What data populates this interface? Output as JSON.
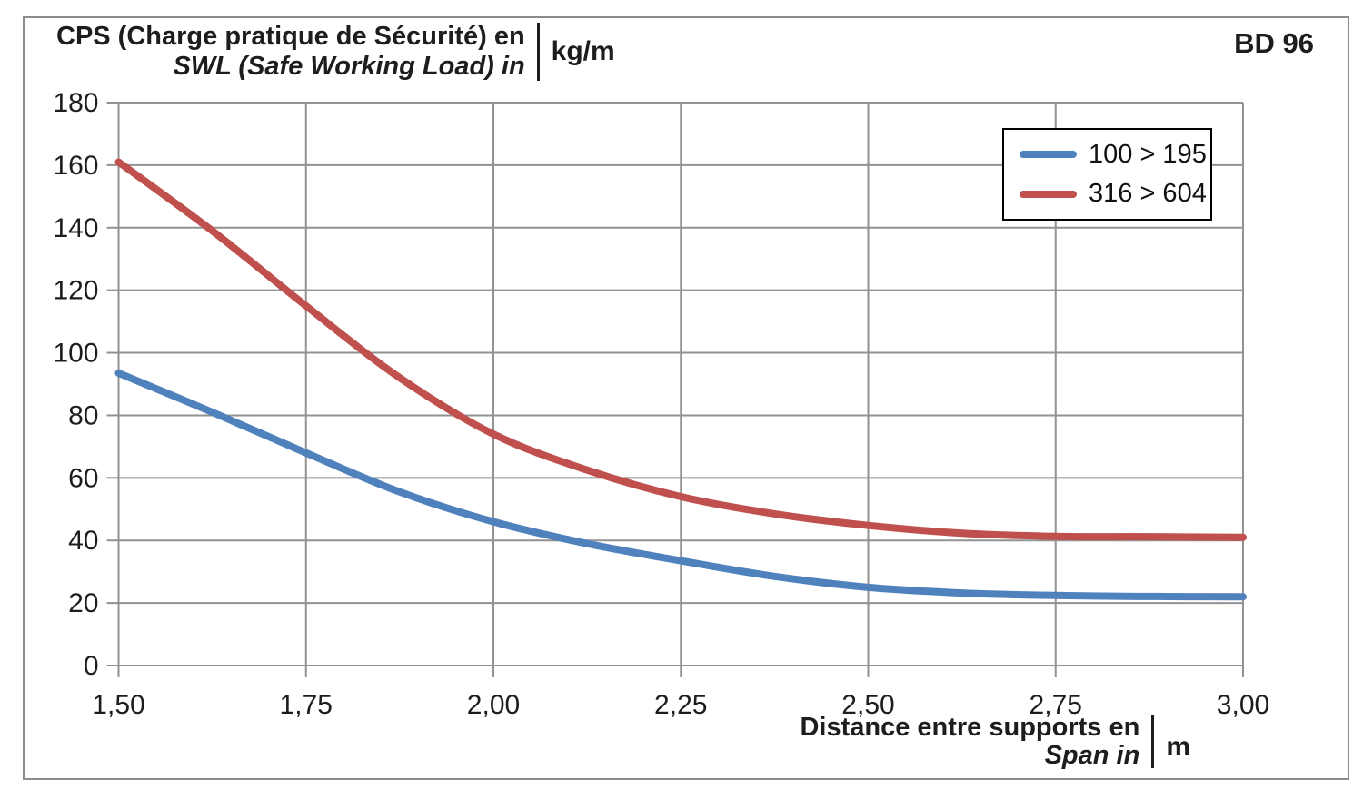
{
  "frame": {
    "bd_label": "BD 96"
  },
  "y_axis_title": {
    "line1": "CPS (Charge pratique de Sécurité) en",
    "line2": "SWL (Safe Working Load) in",
    "unit": "kg/m"
  },
  "x_axis_title": {
    "line1": "Distance entre supports en",
    "line2": "Span in",
    "unit": "m"
  },
  "legend": {
    "position": "top-right",
    "items": [
      {
        "label": "100 > 195",
        "color": "#4F81BD"
      },
      {
        "label": "316 > 604",
        "color": "#C0504D"
      }
    ]
  },
  "chart_data": {
    "type": "line",
    "title": "BD 96",
    "xlabel": "Distance entre supports en / Span in (m)",
    "ylabel": "CPS (Charge pratique de Sécurité) / SWL (Safe Working Load) (kg/m)",
    "xlim": [
      1.5,
      3.0
    ],
    "ylim": [
      0,
      180
    ],
    "grid": true,
    "x": [
      1.5,
      1.625,
      1.75,
      1.875,
      2.0,
      2.125,
      2.25,
      2.375,
      2.5,
      2.625,
      2.75,
      2.875,
      3.0
    ],
    "series": [
      {
        "name": "100 > 195",
        "color": "#4F81BD",
        "values": [
          93.5,
          81,
          68,
          55.5,
          46,
          39,
          33.5,
          28.5,
          25,
          23.2,
          22.4,
          22.1,
          22
        ]
      },
      {
        "name": "316 > 604",
        "color": "#C0504D",
        "values": [
          161,
          139,
          115,
          92,
          74,
          62.5,
          54,
          48.5,
          44.8,
          42.3,
          41.3,
          41.2,
          41
        ]
      }
    ],
    "x_tick_values": [
      1.5,
      1.75,
      2.0,
      2.25,
      2.5,
      2.75,
      3.0
    ],
    "x_tick_labels": [
      "1,50",
      "1,75",
      "2,00",
      "2,25",
      "2,50",
      "2,75",
      "3,00"
    ],
    "y_ticks": [
      0,
      20,
      40,
      60,
      80,
      100,
      120,
      140,
      160,
      180
    ],
    "colors": {
      "grid": "#929292",
      "text": "#1d1d1d"
    },
    "line_width": 8
  }
}
